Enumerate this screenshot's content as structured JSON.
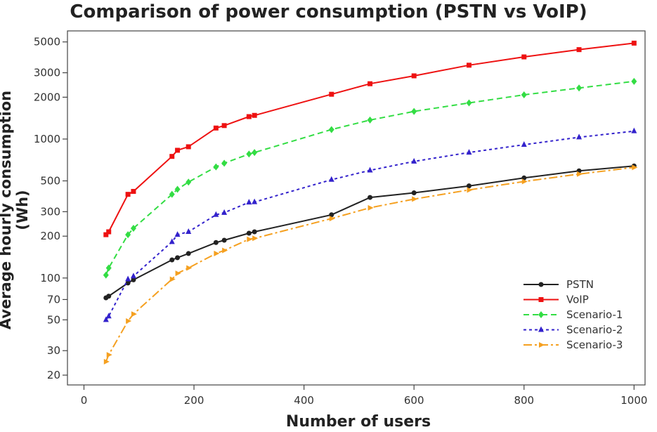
{
  "chart_data": {
    "type": "line",
    "title": "Comparison of power consumption (PSTN vs VoIP)",
    "xlabel": "Number of users",
    "ylabel": "Average hourly consumption (Wh)",
    "xlim": [
      -30,
      1020
    ],
    "ylim": [
      17,
      6000
    ],
    "yscale": "log",
    "xticks": [
      0,
      200,
      400,
      600,
      800,
      1000
    ],
    "yticks": [
      20,
      30,
      50,
      70,
      100,
      200,
      300,
      500,
      1000,
      2000,
      3000,
      5000
    ],
    "legend_position": "bottom-right",
    "series": [
      {
        "name": "PSTN",
        "color": "#222222",
        "dash": "",
        "marker": "circle",
        "x": [
          40,
          45,
          80,
          90,
          160,
          170,
          190,
          240,
          255,
          300,
          310,
          450,
          520,
          600,
          700,
          800,
          900,
          1000
        ],
        "y": [
          72,
          74,
          92,
          97,
          135,
          140,
          150,
          180,
          187,
          210,
          215,
          285,
          380,
          410,
          460,
          525,
          590,
          640
        ]
      },
      {
        "name": "VoIP",
        "color": "#ee1111",
        "dash": "",
        "marker": "square",
        "x": [
          40,
          45,
          80,
          90,
          160,
          170,
          190,
          240,
          255,
          300,
          310,
          450,
          520,
          600,
          700,
          800,
          900,
          1000
        ],
        "y": [
          205,
          215,
          400,
          420,
          750,
          830,
          880,
          1200,
          1250,
          1450,
          1480,
          2100,
          2500,
          2850,
          3400,
          3900,
          4400,
          4900
        ]
      },
      {
        "name": "Scenario-1",
        "color": "#33dd44",
        "dash": "8,5",
        "marker": "diamond",
        "x": [
          40,
          45,
          80,
          90,
          160,
          170,
          190,
          240,
          255,
          300,
          310,
          450,
          520,
          600,
          700,
          800,
          900,
          1000
        ],
        "y": [
          105,
          118,
          205,
          228,
          400,
          435,
          490,
          630,
          670,
          780,
          800,
          1170,
          1370,
          1580,
          1820,
          2080,
          2330,
          2600
        ]
      },
      {
        "name": "Scenario-2",
        "color": "#3322cc",
        "dash": "4,4",
        "marker": "triangle",
        "x": [
          40,
          45,
          80,
          90,
          160,
          170,
          190,
          240,
          255,
          300,
          310,
          450,
          520,
          600,
          700,
          800,
          900,
          1000
        ],
        "y": [
          50,
          53,
          98,
          103,
          182,
          205,
          215,
          285,
          295,
          350,
          352,
          510,
          595,
          690,
          800,
          910,
          1030,
          1140
        ]
      },
      {
        "name": "Scenario-3",
        "color": "#f5a020",
        "dash": "12,4,3,4",
        "marker": "triangle-right",
        "x": [
          40,
          45,
          80,
          90,
          160,
          170,
          190,
          240,
          255,
          300,
          310,
          450,
          520,
          600,
          700,
          800,
          900,
          1000
        ],
        "y": [
          25,
          28,
          49,
          55,
          98,
          108,
          118,
          150,
          158,
          190,
          193,
          268,
          320,
          370,
          430,
          495,
          560,
          625
        ]
      }
    ]
  }
}
